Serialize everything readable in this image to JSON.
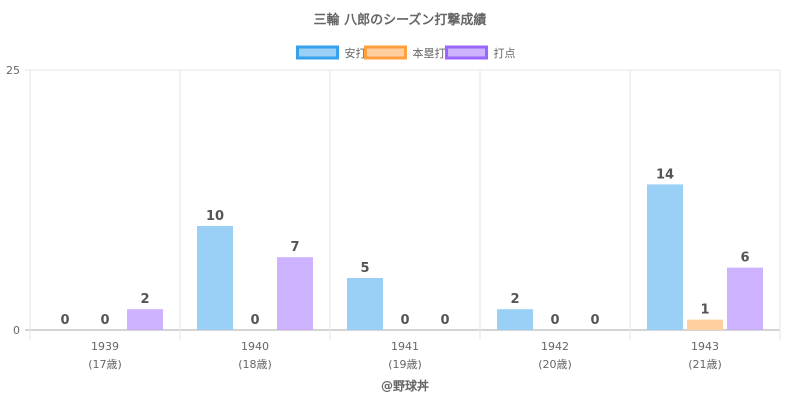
{
  "chart_data": {
    "type": "bar",
    "title": "三輪 八郎のシーズン打撃成績",
    "categories": [
      "1939",
      "1940",
      "1941",
      "1942",
      "1943"
    ],
    "category_sublabels": [
      "(17歳)",
      "(18歳)",
      "(19歳)",
      "(20歳)",
      "(21歳)"
    ],
    "series": [
      {
        "name": "安打",
        "values": [
          0,
          10,
          5,
          2,
          14
        ],
        "fill": "#9ad0f5",
        "stroke": "#36a2eb"
      },
      {
        "name": "本塁打",
        "values": [
          0,
          0,
          0,
          0,
          1
        ],
        "fill": "#ffcf9f",
        "stroke": "#ff9f40"
      },
      {
        "name": "打点",
        "values": [
          2,
          7,
          0,
          0,
          6
        ],
        "fill": "#ccb2ff",
        "stroke": "#9966ff"
      }
    ],
    "ylim": [
      0,
      25
    ],
    "yticks": [
      "0",
      "25"
    ],
    "xlabel": "@野球丼",
    "ylabel": "",
    "legend": "top",
    "grid": true
  }
}
